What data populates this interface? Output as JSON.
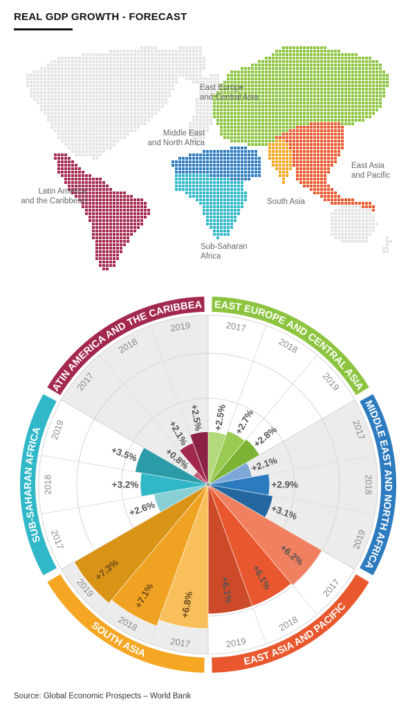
{
  "title": "REAL GDP GROWTH - FORECAST",
  "source": "Source: Global Economic Prospects – World Bank",
  "map": {
    "regions": [
      {
        "key": "eca",
        "label": [
          "East Europe",
          "and Central Asia"
        ],
        "color": "#8cc43f"
      },
      {
        "key": "mena",
        "label": [
          "Middle East",
          "and North Africa"
        ],
        "color": "#2d7bbf"
      },
      {
        "key": "eap",
        "label": [
          "East Asia",
          "and Pacific"
        ],
        "color": "#e8572d"
      },
      {
        "key": "sa",
        "label": [
          "South Asia"
        ],
        "color": "#f5a623"
      },
      {
        "key": "ssa",
        "label": [
          "Sub-Saharan",
          "Africa"
        ],
        "color": "#30b8c8"
      },
      {
        "key": "lac",
        "label": [
          "Latin America",
          "and the Caribbean"
        ],
        "color": "#a3284e"
      }
    ],
    "other_color": "#e4e4e4"
  },
  "chart_data": {
    "type": "polar_bar",
    "title": "REAL GDP GROWTH - FORECAST",
    "unit": "%",
    "years": [
      "2017",
      "2018",
      "2019"
    ],
    "series": [
      {
        "name": "EAST EUROPE AND CENTRAL ASIA",
        "color": "#8cc43f",
        "values": [
          2.5,
          2.7,
          2.8
        ],
        "labels": [
          "+2.5%",
          "+2.7%",
          "+2.8%"
        ],
        "shades": [
          "#b2d97a",
          "#99cb52",
          "#7db334"
        ]
      },
      {
        "name": "MIDDLE EAST AND NORTH AFRICA",
        "color": "#2d7bbf",
        "values": [
          2.1,
          2.9,
          3.1
        ],
        "labels": [
          "+2.1%",
          "+2.9%",
          "+3.1%"
        ],
        "shades": [
          "#7ea8d8",
          "#2d7bbf",
          "#24669f"
        ]
      },
      {
        "name": "EAST ASIA AND PACIFIC",
        "color": "#e8572d",
        "values": [
          6.2,
          6.1,
          6.1
        ],
        "labels": [
          "+6.2%",
          "+6.1%",
          "+6.1%"
        ],
        "shades": [
          "#f08060",
          "#e8572d",
          "#cc4a28"
        ]
      },
      {
        "name": "SOUTH ASIA",
        "color": "#f5a623",
        "values": [
          6.8,
          7.1,
          7.3
        ],
        "labels": [
          "+6.8%",
          "+7.1%",
          "+7.3%"
        ],
        "shades": [
          "#f8bf5a",
          "#f0a323",
          "#d99418"
        ]
      },
      {
        "name": "SUB-SAHARAN AFRICA",
        "color": "#30b8c8",
        "values": [
          2.6,
          3.2,
          3.5
        ],
        "labels": [
          "+2.6%",
          "+3.2%",
          "+3.5%"
        ],
        "shades": [
          "#88d0d6",
          "#30b8c8",
          "#2a9ba7"
        ]
      },
      {
        "name": "LATIN AMERICA AND THE CARIBBEAN",
        "color": "#a3284e",
        "values": [
          0.8,
          2.1,
          2.5
        ],
        "labels": [
          "+0.8%",
          "+2.1%",
          "+2.5%"
        ],
        "shades": [
          "#c25c7a",
          "#a3284e",
          "#8c2243"
        ]
      }
    ],
    "band_labels": {
      "eca": "EAST EUROPE AND CENTRAL ASIA",
      "mena": "MIDDLE EAST AND NORTH AFRICA",
      "eap": "EAST ASIA AND PACIFIC",
      "sa": "SOUTH ASIA",
      "ssa": "SUB-SAHARAN  AFRICA",
      "lac": "LATIN AMERICA AND THE CARIBBEAN"
    },
    "rlim": [
      0,
      8
    ],
    "grid": true
  }
}
